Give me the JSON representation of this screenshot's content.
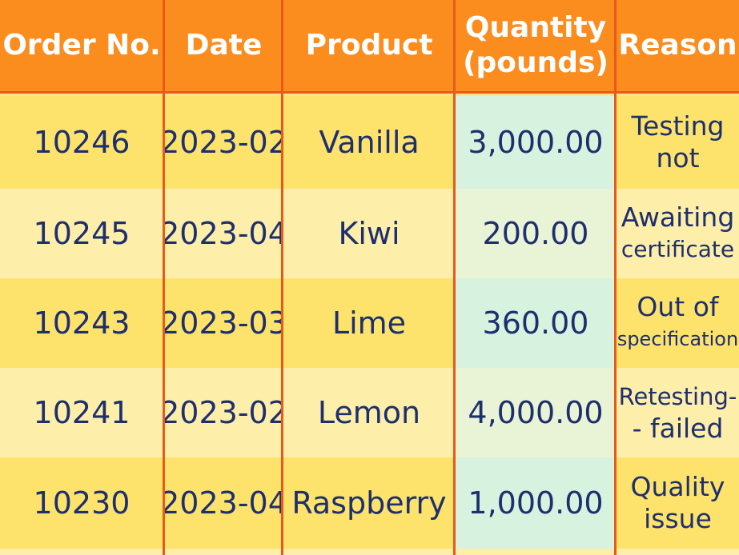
{
  "columns": [
    "Order No.",
    "Date",
    "Product",
    "Quantity\n(pounds)",
    "Reason"
  ],
  "header": {
    "order_no": "Order No.",
    "date": "Date",
    "product": "Product",
    "quantity_line1": "Quantity",
    "quantity_line2": "(pounds)",
    "reason": "Reason"
  },
  "rows": [
    {
      "order_no": "10246",
      "date": "2023-02",
      "product": "Vanilla",
      "quantity": "3,000.00",
      "reason_line1": "Testing",
      "reason_line2": "not"
    },
    {
      "order_no": "10245",
      "date": "2023-04",
      "product": "Kiwi",
      "quantity": "200.00",
      "reason_line1": "Awaiting",
      "reason_line2": "certificate"
    },
    {
      "order_no": "10243",
      "date": "2023-03",
      "product": "Lime",
      "quantity": "360.00",
      "reason_line1": "Out of",
      "reason_line2": "specification"
    },
    {
      "order_no": "10241",
      "date": "2023-02",
      "product": "Lemon",
      "quantity": "4,000.00",
      "reason_line1": "Retesting-",
      "reason_line2": "- failed"
    },
    {
      "order_no": "10230",
      "date": "2023-04",
      "product": "Raspberry",
      "quantity": "1,000.00",
      "reason_line1": "Quality",
      "reason_line2": "issue"
    }
  ],
  "colors": {
    "header_bg": "#fb8c1e",
    "border": "#e8591a",
    "row_dark": "#fde36b",
    "row_light": "#fdeeaa",
    "quantity_highlight": "#d8f2e0",
    "text": "#1e2f6e"
  }
}
